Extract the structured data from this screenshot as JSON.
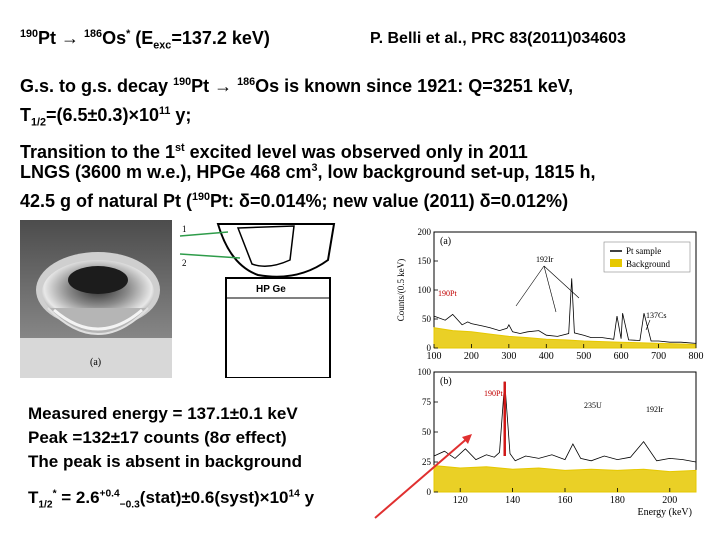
{
  "header": {
    "decay_sup1": "190",
    "decay_pt": "Pt",
    "decay_arrow": "→",
    "decay_sup2": "186",
    "decay_os": "Os",
    "decay_star": "*",
    "decay_open": "(E",
    "decay_exc": "exc",
    "decay_eq": "=137.2 keV)",
    "citation": "P. Belli et al., PRC 83(2011)034603"
  },
  "intro": {
    "l1_a": "G.s. to g.s. decay ",
    "l1_sup1": "190",
    "l1_b": "Pt ",
    "l1_arrow": "→",
    "l1_sp": " ",
    "l1_sup2": "186",
    "l1_c": "Os is known since 1921: Q=3251 keV,",
    "l2_t": "T",
    "l2_sub": "1/2",
    "l2_a": "=(6.5±0.3)×10",
    "l2_sup": "11",
    "l2_b": " y;",
    "l3_a": "Transition to the 1",
    "l3_sup": "st",
    "l3_b": " excited level was observed only in 2011"
  },
  "setup": {
    "l1_a": "LNGS (3600 m w.e.), HPGe 468 cm",
    "l1_sup": "3",
    "l1_b": ", low background set-up, 1815 h,",
    "l2_a": "42.5 g of natural Pt (",
    "l2_sup": "190",
    "l2_b": "Pt: δ=0.014%; new value (2011) δ=0.012%)"
  },
  "figure_photo": {
    "label_a": "(a)",
    "label_1": "1",
    "label_2": "2",
    "detector_label": "HP Ge"
  },
  "results": {
    "line1": "Measured energy = 137.1±0.1 keV",
    "line2": "Peak =132±17 counts (8σ effect)",
    "line3": "The peak is absent in background",
    "hl_t": "T",
    "hl_sub": "1/2",
    "hl_star": "*",
    "hl_eq": " = 2.6",
    "hl_plus": "+0.4",
    "hl_minus": "−0.3",
    "hl_rest": "(stat)±0.6(syst)×10",
    "hl_exp": "14",
    "hl_y": " y"
  },
  "chart_data": [
    {
      "type": "line",
      "panel": "(a)",
      "ylabel": "Counts/(0.5 keV)",
      "xlim": [
        100,
        800
      ],
      "ylim": [
        0,
        200
      ],
      "x_ticks": [
        "100",
        "200",
        "300",
        "400",
        "500",
        "600",
        "700",
        "800"
      ],
      "y_ticks": [
        "0",
        "50",
        "100",
        "150",
        "200"
      ],
      "series": [
        {
          "name": "Pt sample",
          "color": "#000000",
          "x": [
            100,
            130,
            150,
            175,
            190,
            200,
            230,
            250,
            275,
            295,
            300,
            310,
            330,
            350,
            380,
            400,
            430,
            460,
            468,
            475,
            500,
            520,
            550,
            580,
            589,
            600,
            604,
            620,
            650,
            661,
            680,
            700,
            730,
            760,
            800
          ],
          "y": [
            55,
            48,
            58,
            40,
            45,
            42,
            38,
            35,
            30,
            34,
            40,
            28,
            25,
            28,
            30,
            22,
            20,
            25,
            120,
            26,
            22,
            18,
            18,
            15,
            55,
            16,
            60,
            14,
            13,
            60,
            12,
            12,
            10,
            10,
            8
          ]
        },
        {
          "name": "Background",
          "color": "#e6c800",
          "x": [
            100,
            150,
            200,
            250,
            300,
            350,
            400,
            450,
            500,
            550,
            600,
            650,
            700,
            750,
            800
          ],
          "y": [
            35,
            30,
            28,
            24,
            20,
            18,
            15,
            14,
            12,
            11,
            10,
            9,
            8,
            7,
            6
          ]
        }
      ],
      "annotations": [
        "192Ir",
        "190Pt",
        "137Cs"
      ]
    },
    {
      "type": "line",
      "panel": "(b)",
      "xlabel": "Energy (keV)",
      "xlim": [
        110,
        210
      ],
      "ylim": [
        0,
        100
      ],
      "x_ticks": [
        "120",
        "140",
        "160",
        "180",
        "200"
      ],
      "y_ticks": [
        "0",
        "25",
        "50",
        "75",
        "100"
      ],
      "series": [
        {
          "name": "Pt sample",
          "color": "#000000",
          "x": [
            110,
            114,
            118,
            122,
            126,
            130,
            133,
            135,
            137,
            139,
            141,
            145,
            150,
            155,
            160,
            163,
            166,
            170,
            175,
            180,
            185,
            190,
            195,
            200,
            205,
            210
          ],
          "y": [
            30,
            34,
            28,
            36,
            27,
            31,
            29,
            33,
            92,
            32,
            26,
            30,
            28,
            31,
            27,
            40,
            28,
            26,
            30,
            27,
            29,
            42,
            26,
            28,
            27,
            25
          ]
        },
        {
          "name": "Background",
          "color": "#e6c800",
          "x": [
            110,
            120,
            130,
            140,
            150,
            160,
            170,
            180,
            190,
            200,
            210
          ],
          "y": [
            22,
            20,
            21,
            19,
            20,
            18,
            19,
            18,
            19,
            17,
            18
          ]
        }
      ],
      "annotations": [
        "190Pt",
        "235U",
        "192Ir"
      ]
    }
  ]
}
